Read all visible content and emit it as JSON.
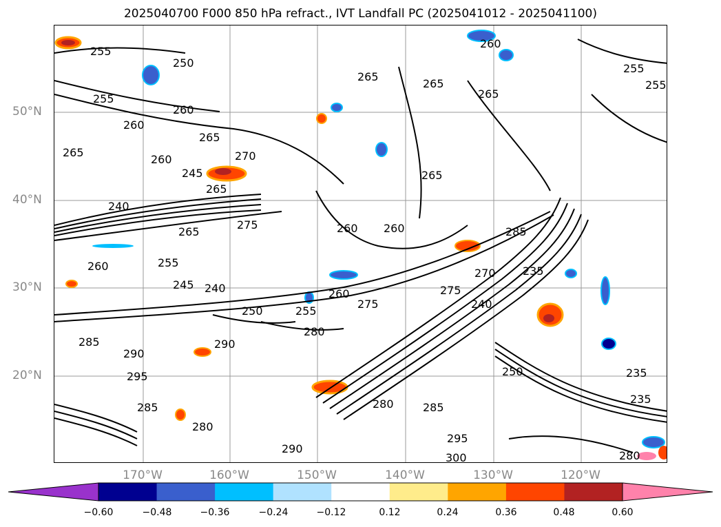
{
  "title": "2025040700 F000 850 hPa refract., IVT Landfall PC (2025041012 - 2025041100)",
  "lat_labels": [
    "50°N",
    "40°N",
    "30°N",
    "20°N"
  ],
  "lon_labels": [
    "170°W",
    "160°W",
    "150°W",
    "140°W",
    "130°W",
    "120°W"
  ],
  "contour_labels": [
    "255",
    "250",
    "255",
    "260",
    "260",
    "265",
    "265",
    "270",
    "260",
    "245",
    "265",
    "240",
    "265",
    "275",
    "260",
    "255",
    "245",
    "240",
    "250",
    "255",
    "260",
    "275",
    "280",
    "290",
    "285",
    "290",
    "295",
    "285",
    "280",
    "265",
    "260",
    "265",
    "265",
    "260",
    "265",
    "260",
    "255",
    "285",
    "270",
    "275",
    "240",
    "235",
    "250",
    "235",
    "235",
    "280",
    "285",
    "290",
    "295",
    "300",
    "255",
    "280"
  ],
  "colorbar": {
    "ticks": [
      "−0.60",
      "−0.48",
      "−0.36",
      "−0.24",
      "−0.12",
      "0.12",
      "0.24",
      "0.36",
      "0.48",
      "0.60"
    ],
    "colors": [
      "#9932cc",
      "#000090",
      "#3a5fcd",
      "#00bfff",
      "#b0e2ff",
      "#ffffff",
      "#ffec8b",
      "#ffa500",
      "#ff4500",
      "#b22222",
      "#ff82ab"
    ]
  }
}
